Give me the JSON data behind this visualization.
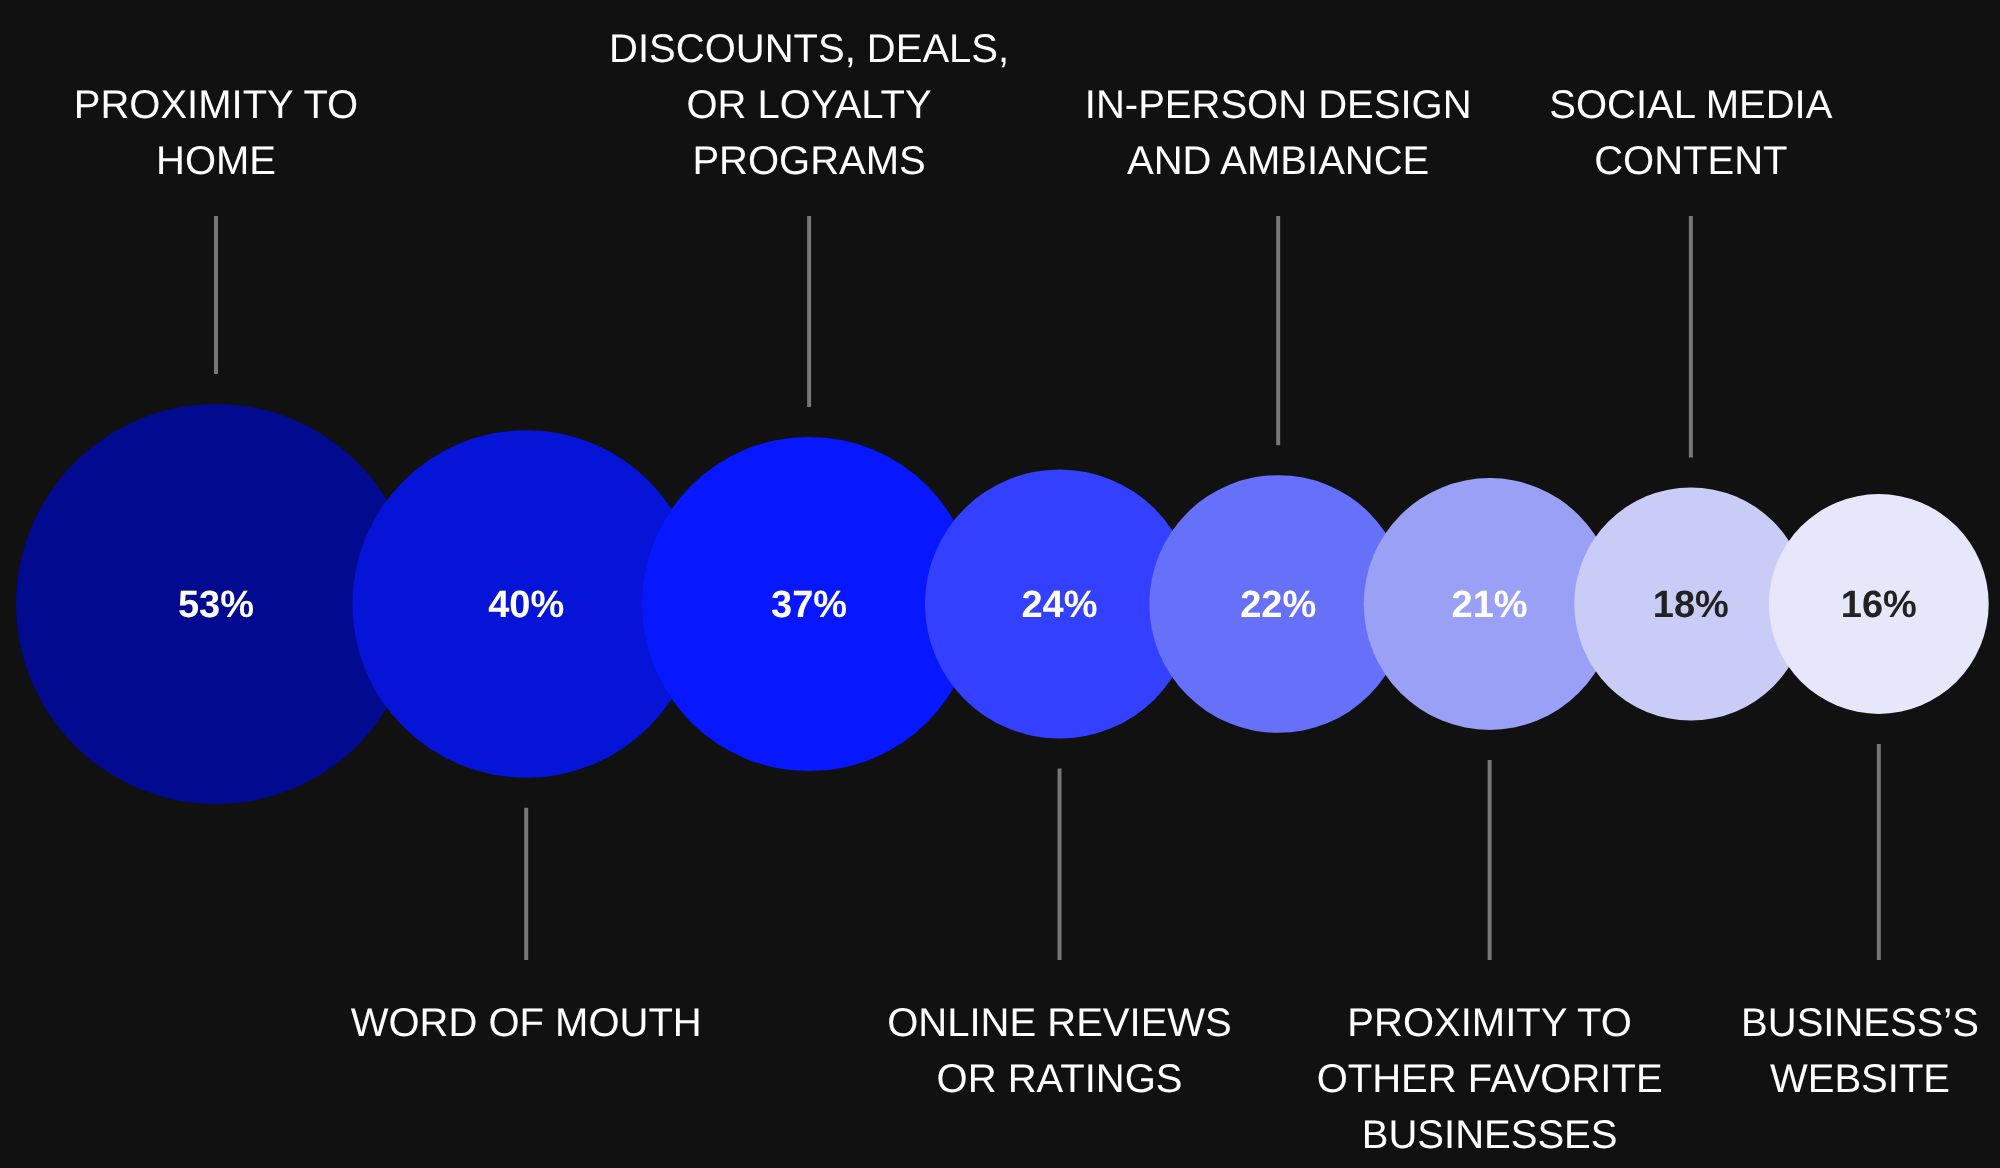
{
  "chart_data": {
    "type": "other",
    "categories": [
      "PROXIMITY TO HOME",
      "WORD OF MOUTH",
      "DISCOUNTS, DEALS, OR LOYALTY PROGRAMS",
      "ONLINE REVIEWS OR RATINGS",
      "IN-PERSON DESIGN AND AMBIANCE",
      "PROXIMITY TO OTHER FAVORITE BUSINESSES",
      "SOCIAL MEDIA CONTENT",
      "BUSINESS’S WEBSITE"
    ],
    "values": [
      53,
      40,
      37,
      24,
      22,
      21,
      18,
      16
    ],
    "colors": [
      "#020b8f",
      "#0514d6",
      "#0717ff",
      "#3340ff",
      "#6670f8",
      "#9aa0f5",
      "#c9ccf7",
      "#e6e7fa"
    ],
    "value_labels": [
      "53%",
      "40%",
      "37%",
      "24%",
      "22%",
      "21%",
      "18%",
      "16%"
    ]
  }
}
